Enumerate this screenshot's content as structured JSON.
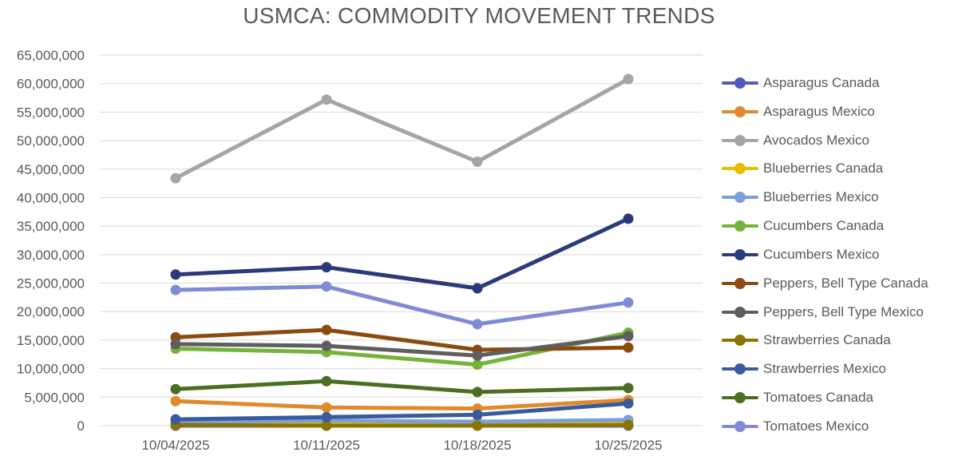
{
  "chart_data": {
    "type": "line",
    "title": "USMCA: COMMODITY MOVEMENT TRENDS",
    "xlabel": "",
    "ylabel": "",
    "categories": [
      "10/04/2025",
      "10/11/2025",
      "10/18/2025",
      "10/25/2025"
    ],
    "ylim": [
      0,
      65000000
    ],
    "yticks": [
      0,
      5000000,
      10000000,
      15000000,
      20000000,
      25000000,
      30000000,
      35000000,
      40000000,
      45000000,
      50000000,
      55000000,
      60000000,
      65000000
    ],
    "ytick_labels": [
      "0",
      "5,000,000",
      "10,000,000",
      "15,000,000",
      "20,000,000",
      "25,000,000",
      "30,000,000",
      "35,000,000",
      "40,000,000",
      "45,000,000",
      "50,000,000",
      "55,000,000",
      "60,000,000",
      "65,000,000"
    ],
    "grid": "horizontal",
    "legend_position": "right",
    "series": [
      {
        "name": "Asparagus Canada",
        "color": "#4F5BBF",
        "values": [
          0,
          0,
          0,
          0
        ]
      },
      {
        "name": "Asparagus Mexico",
        "color": "#E08A2E",
        "values": [
          4300000,
          3200000,
          3000000,
          4500000
        ]
      },
      {
        "name": "Avocados Mexico",
        "color": "#A5A5A5",
        "values": [
          43400000,
          57200000,
          46300000,
          60800000
        ]
      },
      {
        "name": "Blueberries Canada",
        "color": "#E6C000",
        "values": [
          500000,
          300000,
          200000,
          400000
        ]
      },
      {
        "name": "Blueberries Mexico",
        "color": "#7B9FD8",
        "values": [
          700000,
          900000,
          700000,
          1000000
        ]
      },
      {
        "name": "Cucumbers Canada",
        "color": "#73B33A",
        "values": [
          13500000,
          12900000,
          10700000,
          16300000
        ]
      },
      {
        "name": "Cucumbers Mexico",
        "color": "#2B3A7A",
        "values": [
          26500000,
          27800000,
          24100000,
          36300000
        ]
      },
      {
        "name": "Peppers, Bell Type Canada",
        "color": "#8B4A0F",
        "values": [
          15500000,
          16800000,
          13300000,
          13700000
        ]
      },
      {
        "name": "Peppers, Bell Type Mexico",
        "color": "#5E5E5E",
        "values": [
          14300000,
          14000000,
          12300000,
          15700000
        ]
      },
      {
        "name": "Strawberries Canada",
        "color": "#8C7400",
        "values": [
          100000,
          0,
          0,
          100000
        ]
      },
      {
        "name": "Strawberries Mexico",
        "color": "#3A5A9C",
        "values": [
          1100000,
          1500000,
          1900000,
          3900000
        ]
      },
      {
        "name": "Tomatoes Canada",
        "color": "#4A6F22",
        "values": [
          6400000,
          7800000,
          5900000,
          6600000
        ]
      },
      {
        "name": "Tomatoes Mexico",
        "color": "#7F8BD6",
        "values": [
          23800000,
          24400000,
          17800000,
          21600000
        ]
      }
    ]
  }
}
